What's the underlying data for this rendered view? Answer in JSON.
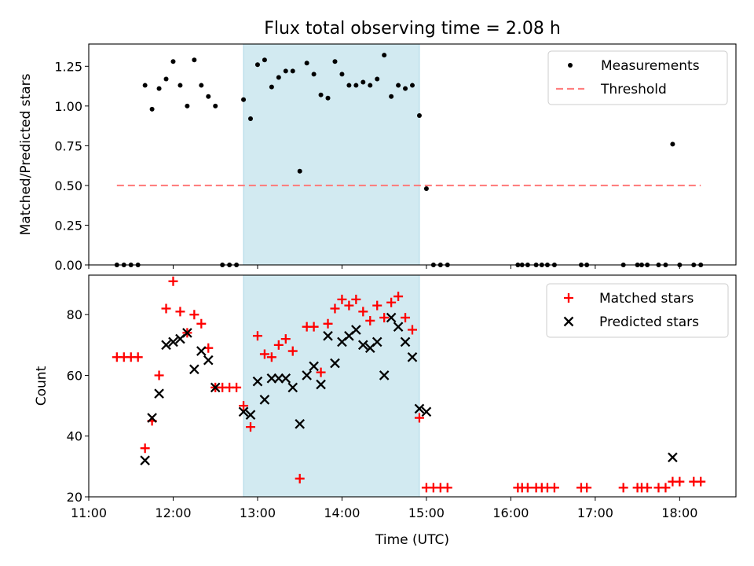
{
  "title": "Flux total observing time = 2.08 h",
  "chart_data": [
    {
      "type": "scatter",
      "ylabel": "Matched/Predicted stars",
      "xlabel": "",
      "xlim": [
        "11:00",
        "18:40"
      ],
      "ylim": [
        0,
        1.39
      ],
      "yticks": [
        "0.00",
        "0.25",
        "0.50",
        "0.75",
        "1.00",
        "1.25"
      ],
      "legend_position": "top-right",
      "shaded_interval": [
        "12:50",
        "14:55"
      ],
      "shade_color": "#add8e6",
      "series": [
        {
          "name": "Measurements",
          "marker": "dot",
          "color": "#000000",
          "points": [
            [
              "11:20",
              0
            ],
            [
              "11:25",
              0
            ],
            [
              "11:30",
              0
            ],
            [
              "11:35",
              0
            ],
            [
              "11:40",
              1.13
            ],
            [
              "11:45",
              0.98
            ],
            [
              "11:50",
              1.11
            ],
            [
              "11:55",
              1.17
            ],
            [
              "12:00",
              1.28
            ],
            [
              "12:05",
              1.13
            ],
            [
              "12:10",
              1.0
            ],
            [
              "12:15",
              1.29
            ],
            [
              "12:20",
              1.13
            ],
            [
              "12:25",
              1.06
            ],
            [
              "12:30",
              1.0
            ],
            [
              "12:35",
              0
            ],
            [
              "12:40",
              0
            ],
            [
              "12:45",
              0
            ],
            [
              "12:50",
              1.04
            ],
            [
              "12:55",
              0.92
            ],
            [
              "13:00",
              1.26
            ],
            [
              "13:05",
              1.29
            ],
            [
              "13:10",
              1.12
            ],
            [
              "13:15",
              1.18
            ],
            [
              "13:20",
              1.22
            ],
            [
              "13:25",
              1.22
            ],
            [
              "13:30",
              0.59
            ],
            [
              "13:35",
              1.27
            ],
            [
              "13:40",
              1.2
            ],
            [
              "13:45",
              1.07
            ],
            [
              "13:50",
              1.05
            ],
            [
              "13:55",
              1.28
            ],
            [
              "14:00",
              1.2
            ],
            [
              "14:05",
              1.13
            ],
            [
              "14:10",
              1.13
            ],
            [
              "14:15",
              1.15
            ],
            [
              "14:20",
              1.13
            ],
            [
              "14:25",
              1.17
            ],
            [
              "14:30",
              1.32
            ],
            [
              "14:35",
              1.06
            ],
            [
              "14:40",
              1.13
            ],
            [
              "14:45",
              1.11
            ],
            [
              "14:50",
              1.13
            ],
            [
              "14:55",
              0.94
            ],
            [
              "15:00",
              0.48
            ],
            [
              "15:05",
              0
            ],
            [
              "15:10",
              0
            ],
            [
              "15:15",
              0
            ],
            [
              "16:05",
              0
            ],
            [
              "16:08",
              0
            ],
            [
              "16:12",
              0
            ],
            [
              "16:18",
              0
            ],
            [
              "16:22",
              0
            ],
            [
              "16:26",
              0
            ],
            [
              "16:31",
              0
            ],
            [
              "16:50",
              0
            ],
            [
              "16:54",
              0
            ],
            [
              "17:20",
              0
            ],
            [
              "17:30",
              0
            ],
            [
              "17:33",
              0
            ],
            [
              "17:37",
              0
            ],
            [
              "17:45",
              0
            ],
            [
              "17:50",
              0
            ],
            [
              "17:55",
              0.76
            ],
            [
              "18:00",
              0
            ],
            [
              "18:10",
              0
            ],
            [
              "18:15",
              0
            ]
          ]
        },
        {
          "name": "Threshold",
          "line": "dashed",
          "color": "#ff7f7f",
          "points": [
            [
              "11:20",
              0.5
            ],
            [
              "18:15",
              0.5
            ]
          ]
        }
      ]
    },
    {
      "type": "scatter",
      "ylabel": "Count",
      "xlabel": "Time (UTC)",
      "xlim": [
        "11:00",
        "18:40"
      ],
      "ylim": [
        20,
        93
      ],
      "yticks": [
        "20",
        "40",
        "60",
        "80"
      ],
      "xticks": [
        "11:00",
        "12:00",
        "13:00",
        "14:00",
        "15:00",
        "16:00",
        "17:00",
        "18:00"
      ],
      "legend_position": "top-right",
      "shaded_interval": [
        "12:50",
        "14:55"
      ],
      "shade_color": "#add8e6",
      "series": [
        {
          "name": "Matched stars",
          "marker": "plus",
          "color": "#ff0000",
          "points": [
            [
              "11:20",
              66
            ],
            [
              "11:25",
              66
            ],
            [
              "11:30",
              66
            ],
            [
              "11:35",
              66
            ],
            [
              "11:40",
              36
            ],
            [
              "11:45",
              45
            ],
            [
              "11:50",
              60
            ],
            [
              "11:55",
              82
            ],
            [
              "12:00",
              91
            ],
            [
              "12:05",
              81
            ],
            [
              "12:10",
              74
            ],
            [
              "12:15",
              80
            ],
            [
              "12:20",
              77
            ],
            [
              "12:25",
              69
            ],
            [
              "12:30",
              56
            ],
            [
              "12:35",
              56
            ],
            [
              "12:40",
              56
            ],
            [
              "12:45",
              56
            ],
            [
              "12:50",
              50
            ],
            [
              "12:55",
              43
            ],
            [
              "13:00",
              73
            ],
            [
              "13:05",
              67
            ],
            [
              "13:10",
              66
            ],
            [
              "13:15",
              70
            ],
            [
              "13:20",
              72
            ],
            [
              "13:25",
              68
            ],
            [
              "13:30",
              26
            ],
            [
              "13:35",
              76
            ],
            [
              "13:40",
              76
            ],
            [
              "13:45",
              61
            ],
            [
              "13:50",
              77
            ],
            [
              "13:55",
              82
            ],
            [
              "14:00",
              85
            ],
            [
              "14:05",
              83
            ],
            [
              "14:10",
              85
            ],
            [
              "14:15",
              81
            ],
            [
              "14:20",
              78
            ],
            [
              "14:25",
              83
            ],
            [
              "14:30",
              79
            ],
            [
              "14:35",
              84
            ],
            [
              "14:40",
              86
            ],
            [
              "14:45",
              79
            ],
            [
              "14:50",
              75
            ],
            [
              "14:55",
              46
            ],
            [
              "15:00",
              23
            ],
            [
              "15:05",
              23
            ],
            [
              "15:10",
              23
            ],
            [
              "15:15",
              23
            ],
            [
              "16:05",
              23
            ],
            [
              "16:08",
              23
            ],
            [
              "16:12",
              23
            ],
            [
              "16:18",
              23
            ],
            [
              "16:22",
              23
            ],
            [
              "16:26",
              23
            ],
            [
              "16:31",
              23
            ],
            [
              "16:50",
              23
            ],
            [
              "16:54",
              23
            ],
            [
              "17:20",
              23
            ],
            [
              "17:30",
              23
            ],
            [
              "17:33",
              23
            ],
            [
              "17:37",
              23
            ],
            [
              "17:45",
              23
            ],
            [
              "17:50",
              23
            ],
            [
              "17:55",
              25
            ],
            [
              "18:00",
              25
            ],
            [
              "18:10",
              25
            ],
            [
              "18:15",
              25
            ]
          ]
        },
        {
          "name": "Predicted stars",
          "marker": "x",
          "color": "#000000",
          "points": [
            [
              "11:40",
              32
            ],
            [
              "11:45",
              46
            ],
            [
              "11:50",
              54
            ],
            [
              "11:55",
              70
            ],
            [
              "12:00",
              71
            ],
            [
              "12:05",
              72
            ],
            [
              "12:10",
              74
            ],
            [
              "12:15",
              62
            ],
            [
              "12:20",
              68
            ],
            [
              "12:25",
              65
            ],
            [
              "12:30",
              56
            ],
            [
              "12:50",
              48
            ],
            [
              "12:55",
              47
            ],
            [
              "13:00",
              58
            ],
            [
              "13:05",
              52
            ],
            [
              "13:10",
              59
            ],
            [
              "13:15",
              59
            ],
            [
              "13:20",
              59
            ],
            [
              "13:25",
              56
            ],
            [
              "13:30",
              44
            ],
            [
              "13:35",
              60
            ],
            [
              "13:40",
              63
            ],
            [
              "13:45",
              57
            ],
            [
              "13:50",
              73
            ],
            [
              "13:55",
              64
            ],
            [
              "14:00",
              71
            ],
            [
              "14:05",
              73
            ],
            [
              "14:10",
              75
            ],
            [
              "14:15",
              70
            ],
            [
              "14:20",
              69
            ],
            [
              "14:25",
              71
            ],
            [
              "14:30",
              60
            ],
            [
              "14:35",
              79
            ],
            [
              "14:40",
              76
            ],
            [
              "14:45",
              71
            ],
            [
              "14:50",
              66
            ],
            [
              "14:55",
              49
            ],
            [
              "15:00",
              48
            ],
            [
              "17:55",
              33
            ]
          ]
        }
      ]
    }
  ]
}
